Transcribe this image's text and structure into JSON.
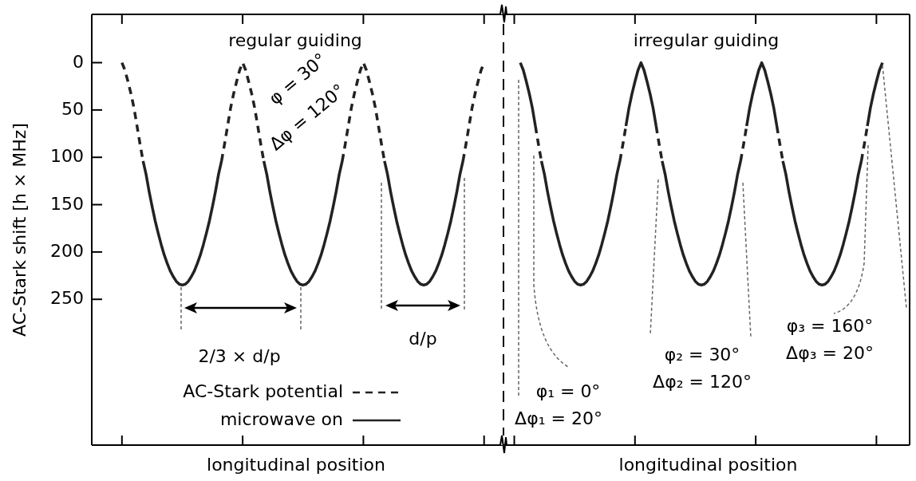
{
  "chart_data": {
    "type": "line",
    "xlabel": "longitudinal position",
    "ylabel": "AC-Stark shift [h × MHz]",
    "categories": [
      null,
      null,
      null,
      null,
      null,
      null,
      null,
      null,
      null,
      null,
      null,
      null,
      null,
      null,
      null,
      null,
      null,
      null,
      null,
      null,
      null,
      null,
      null,
      null,
      null,
      null,
      null,
      null,
      null,
      null,
      null,
      null,
      null,
      null,
      null,
      null,
      null,
      null,
      null,
      null,
      null,
      null,
      null,
      null,
      null,
      null,
      null,
      null,
      null,
      null,
      null,
      null,
      null,
      null,
      null,
      null,
      null,
      null,
      null,
      null,
      null,
      null,
      null,
      null,
      null,
      null,
      null,
      null,
      null,
      null,
      null,
      null,
      null,
      null,
      null,
      null,
      null,
      null,
      null,
      null,
      null,
      null,
      null,
      null,
      null,
      null,
      null,
      null,
      null,
      null,
      null,
      null,
      null,
      null,
      null,
      null,
      null,
      null,
      null,
      null,
      null,
      null,
      null,
      null,
      null,
      null,
      null,
      null,
      null,
      null,
      null,
      null,
      null,
      null,
      null,
      null,
      null,
      null,
      null,
      null,
      null,
      null,
      null,
      null,
      null,
      null,
      null,
      null,
      null,
      null,
      null,
      null,
      null,
      null,
      null,
      null,
      null,
      null,
      null,
      null,
      null,
      null,
      null,
      null,
      null,
      null,
      null,
      null,
      null,
      null,
      null,
      null,
      null,
      null,
      null,
      null,
      null,
      null,
      null,
      null,
      null,
      null,
      null,
      null,
      null,
      null,
      null,
      null,
      null,
      null,
      null,
      null,
      null,
      null,
      null,
      null,
      null,
      null,
      null,
      null,
      null,
      null,
      null,
      null,
      null,
      null,
      null,
      null,
      null,
      null,
      null,
      null,
      null,
      null,
      null,
      null,
      null,
      null,
      null,
      null,
      null,
      null,
      null,
      null,
      null,
      null,
      null,
      null,
      null,
      null,
      null,
      null,
      null,
      null,
      null,
      null,
      null,
      null,
      null,
      null,
      null,
      null,
      null,
      null,
      null,
      null,
      null,
      null,
      null,
      null,
      null,
      null,
      null,
      null,
      null,
      null,
      null,
      null,
      null,
      null,
      null,
      null,
      null,
      null,
      null,
      null,
      null,
      null,
      null,
      null,
      null,
      null,
      null,
      null,
      null,
      null,
      null,
      null,
      null,
      null,
      null,
      null,
      null,
      null,
      null,
      null,
      null,
      null,
      null,
      null,
      null,
      null
    ],
    "series": [
      {
        "name": "AC-Stark potential",
        "color": "#222222",
        "line_style": "dashed",
        "values": [
          null,
          null,
          null,
          null,
          null,
          null,
          null,
          null,
          null,
          null,
          0,
          8,
          20,
          33,
          48,
          67,
          86,
          104,
          null,
          null,
          null,
          null,
          null,
          null,
          null,
          null,
          null,
          null,
          null,
          null,
          null,
          null,
          null,
          null,
          null,
          null,
          null,
          null,
          null,
          null,
          null,
          null,
          null,
          104,
          86,
          67,
          48,
          33,
          20,
          8,
          0,
          8,
          20,
          33,
          48,
          67,
          86,
          104,
          null,
          null,
          null,
          null,
          null,
          null,
          null,
          null,
          null,
          null,
          null,
          null,
          null,
          null,
          null,
          null,
          null,
          null,
          null,
          null,
          null,
          null,
          null,
          null,
          null,
          104,
          86,
          67,
          48,
          33,
          20,
          8,
          0,
          8,
          20,
          33,
          48,
          67,
          86,
          104,
          null,
          null,
          null,
          null,
          null,
          null,
          null,
          null,
          null,
          null,
          null,
          null,
          null,
          null,
          null,
          null,
          null,
          null,
          null,
          null,
          null,
          null,
          null,
          null,
          null,
          104,
          86,
          67,
          48,
          33,
          20,
          8,
          0,
          null,
          null,
          null,
          null,
          null,
          null,
          null,
          null,
          null,
          null,
          null,
          null,
          null,
          null,
          null,
          null,
          67,
          86,
          104,
          null,
          null,
          null,
          null,
          null,
          null,
          null,
          null,
          null,
          null,
          null,
          null,
          null,
          null,
          null,
          null,
          null,
          null,
          null,
          null,
          null,
          null,
          null,
          null,
          null,
          104,
          86,
          67,
          null,
          null,
          null,
          null,
          null,
          null,
          null,
          null,
          null,
          67,
          86,
          104,
          null,
          null,
          null,
          null,
          null,
          null,
          null,
          null,
          null,
          null,
          null,
          null,
          null,
          null,
          null,
          null,
          null,
          null,
          null,
          null,
          null,
          null,
          null,
          null,
          null,
          104,
          86,
          67,
          null,
          null,
          null,
          null,
          null,
          null,
          null,
          null,
          null,
          67,
          86,
          104,
          null,
          null,
          null,
          null,
          null,
          null,
          null,
          null,
          null,
          null,
          null,
          null,
          null,
          null,
          null,
          null,
          null,
          null,
          null,
          null,
          null,
          null,
          null,
          null,
          null,
          104,
          86,
          67,
          null,
          null,
          null,
          null,
          null,
          null,
          null,
          null,
          null,
          null,
          null,
          null,
          null,
          null
        ]
      },
      {
        "name": "microwave on",
        "color": "#222222",
        "line_style": "solid",
        "values": [
          null,
          null,
          null,
          null,
          null,
          null,
          null,
          null,
          null,
          null,
          null,
          null,
          null,
          null,
          null,
          null,
          null,
          104,
          118,
          136,
          152,
          167,
          180,
          192,
          203,
          212,
          220,
          226,
          231,
          234,
          235,
          234,
          231,
          226,
          220,
          212,
          203,
          192,
          180,
          167,
          152,
          136,
          118,
          104,
          null,
          null,
          null,
          null,
          null,
          null,
          null,
          null,
          null,
          null,
          null,
          null,
          null,
          104,
          118,
          136,
          152,
          167,
          180,
          192,
          203,
          212,
          220,
          226,
          231,
          234,
          235,
          234,
          231,
          226,
          220,
          212,
          203,
          192,
          180,
          167,
          152,
          136,
          118,
          104,
          null,
          null,
          null,
          null,
          null,
          null,
          null,
          null,
          null,
          null,
          null,
          null,
          null,
          104,
          118,
          136,
          152,
          167,
          180,
          192,
          203,
          212,
          220,
          226,
          231,
          234,
          235,
          234,
          231,
          226,
          220,
          212,
          203,
          192,
          180,
          167,
          152,
          136,
          118,
          104,
          null,
          null,
          null,
          null,
          null,
          null,
          null,
          null,
          null,
          null,
          null,
          null,
          null,
          null,
          null,
          null,
          null,
          null,
          0,
          8,
          20,
          33,
          48,
          67,
          null,
          104,
          118,
          136,
          152,
          167,
          180,
          192,
          203,
          212,
          220,
          226,
          231,
          234,
          235,
          234,
          231,
          226,
          220,
          212,
          203,
          192,
          180,
          167,
          152,
          136,
          118,
          104,
          null,
          67,
          48,
          33,
          20,
          8,
          0,
          8,
          20,
          33,
          48,
          67,
          null,
          104,
          118,
          136,
          152,
          167,
          180,
          192,
          203,
          212,
          220,
          226,
          231,
          234,
          235,
          234,
          231,
          226,
          220,
          212,
          203,
          192,
          180,
          167,
          152,
          136,
          118,
          104,
          null,
          67,
          48,
          33,
          20,
          8,
          0,
          8,
          20,
          33,
          48,
          67,
          null,
          104,
          118,
          136,
          152,
          167,
          180,
          192,
          203,
          212,
          220,
          226,
          231,
          234,
          235,
          234,
          231,
          226,
          220,
          212,
          203,
          192,
          180,
          167,
          152,
          136,
          118,
          104,
          null,
          67,
          48,
          33,
          20,
          8,
          0,
          null,
          null,
          null,
          null,
          null,
          null,
          null,
          null,
          null
        ]
      }
    ],
    "ylim": [
      404,
      -51
    ],
    "yticks": [
      0,
      50,
      100,
      150,
      200,
      250
    ],
    "tick_labels": "y",
    "legend": "bottom",
    "annotations": [
      "regular guiding",
      "irregular guiding",
      "φ = 30°",
      "Δφ = 120°",
      "2/3 × d/p",
      "d/p",
      "φ₁ = 0°",
      "Δφ₁ = 20°",
      "φ₂ = 30°",
      "Δφ₂ = 120°",
      "φ₃ = 160°",
      "Δφ₃ = 20°"
    ]
  }
}
